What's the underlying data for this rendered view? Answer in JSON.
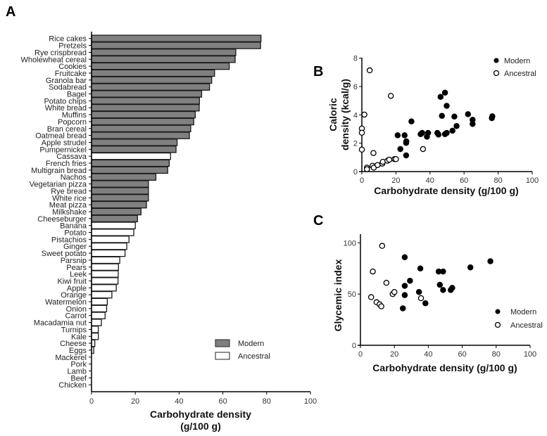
{
  "chart_data": [
    {
      "panel": "A",
      "type": "bar",
      "orientation": "horizontal",
      "xlabel_line1": "Carbohydrate density",
      "xlabel_line2": "(g/100 g)",
      "xlim": [
        0,
        100
      ],
      "xticks": [
        0,
        20,
        40,
        60,
        80,
        100
      ],
      "legend": {
        "placement": "bottom-right",
        "entries": [
          "Modern",
          "Ancestral"
        ]
      },
      "colors": {
        "Modern": "#808080",
        "Ancestral": "#ffffff"
      },
      "bars": [
        {
          "label": "Rice cakes",
          "value": 77.4,
          "group": "Modern"
        },
        {
          "label": "Pretzels",
          "value": 77.2,
          "group": "Modern"
        },
        {
          "label": "Rye crispbread",
          "value": 65.9,
          "group": "Modern"
        },
        {
          "label": "Wholewheat cereal",
          "value": 65.6,
          "group": "Modern"
        },
        {
          "label": "Cookies",
          "value": 62.9,
          "group": "Modern"
        },
        {
          "label": "Fruitcake",
          "value": 56.2,
          "group": "Modern"
        },
        {
          "label": "Granola bar",
          "value": 54.9,
          "group": "Modern"
        },
        {
          "label": "Sodabread",
          "value": 53.9,
          "group": "Modern"
        },
        {
          "label": "Bagel",
          "value": 50.3,
          "group": "Modern"
        },
        {
          "label": "Potato chips",
          "value": 49.3,
          "group": "Modern"
        },
        {
          "label": "White bread",
          "value": 49.2,
          "group": "Modern"
        },
        {
          "label": "Muffins",
          "value": 47.4,
          "group": "Modern"
        },
        {
          "label": "Popcorn",
          "value": 46.7,
          "group": "Modern"
        },
        {
          "label": "Bran cereal",
          "value": 45.3,
          "group": "Modern"
        },
        {
          "label": "Oatmeal bread",
          "value": 44.7,
          "group": "Modern"
        },
        {
          "label": "Apple strudel",
          "value": 39.1,
          "group": "Modern"
        },
        {
          "label": "Pumpernickel",
          "value": 38.6,
          "group": "Modern"
        },
        {
          "label": "Cassava",
          "value": 36.1,
          "group": "Ancestral"
        },
        {
          "label": "French fries",
          "value": 35.5,
          "group": "Modern"
        },
        {
          "label": "Multigrain bread",
          "value": 34.8,
          "group": "Modern"
        },
        {
          "label": "Nachos",
          "value": 29.4,
          "group": "Modern"
        },
        {
          "label": "Vegetarian pizza",
          "value": 26.0,
          "group": "Modern"
        },
        {
          "label": "Rye bread",
          "value": 26.0,
          "group": "Modern"
        },
        {
          "label": "White rice",
          "value": 26.0,
          "group": "Modern"
        },
        {
          "label": "Meat pizza",
          "value": 25.1,
          "group": "Modern"
        },
        {
          "label": "Milkshake",
          "value": 22.6,
          "group": "Modern"
        },
        {
          "label": "Cheeseburger",
          "value": 21.0,
          "group": "Modern"
        },
        {
          "label": "Banana",
          "value": 20.0,
          "group": "Ancestral"
        },
        {
          "label": "Potato",
          "value": 19.3,
          "group": "Ancestral"
        },
        {
          "label": "Pistachios",
          "value": 17.1,
          "group": "Ancestral"
        },
        {
          "label": "Ginger",
          "value": 16.1,
          "group": "Ancestral"
        },
        {
          "label": "Sweet potato",
          "value": 15.3,
          "group": "Ancestral"
        },
        {
          "label": "Parsnip",
          "value": 12.9,
          "group": "Ancestral"
        },
        {
          "label": "Pears",
          "value": 12.3,
          "group": "Ancestral"
        },
        {
          "label": "Leek",
          "value": 12.2,
          "group": "Ancestral"
        },
        {
          "label": "Kiwi fruit",
          "value": 12.1,
          "group": "Ancestral"
        },
        {
          "label": "Apple",
          "value": 11.3,
          "group": "Ancestral"
        },
        {
          "label": "Orange",
          "value": 9.3,
          "group": "Ancestral"
        },
        {
          "label": "Watermelon",
          "value": 7.2,
          "group": "Ancestral"
        },
        {
          "label": "Onion",
          "value": 6.9,
          "group": "Ancestral"
        },
        {
          "label": "Carrot",
          "value": 6.2,
          "group": "Ancestral"
        },
        {
          "label": "Macadamia nut",
          "value": 4.5,
          "group": "Ancestral"
        },
        {
          "label": "Turnips",
          "value": 3.1,
          "group": "Ancestral"
        },
        {
          "label": "Kale",
          "value": 3.1,
          "group": "Ancestral"
        },
        {
          "label": "Cheese",
          "value": 1.5,
          "group": "Ancestral"
        },
        {
          "label": "Eggs",
          "value": 1.0,
          "group": "Ancestral"
        },
        {
          "label": "Mackerel",
          "value": 0,
          "group": "Ancestral"
        },
        {
          "label": "Pork",
          "value": 0,
          "group": "Ancestral"
        },
        {
          "label": "Lamb",
          "value": 0,
          "group": "Ancestral"
        },
        {
          "label": "Beef",
          "value": 0,
          "group": "Ancestral"
        },
        {
          "label": "Chicken",
          "value": 0,
          "group": "Ancestral"
        }
      ]
    },
    {
      "panel": "B",
      "type": "scatter",
      "xlabel": "Carbohydrate density (g/100 g)",
      "ylabel_line1": "Caloric",
      "ylabel_line2": "density (kcal/g)",
      "xlim": [
        0,
        100
      ],
      "ylim": [
        0,
        8
      ],
      "xticks": [
        0,
        20,
        40,
        60,
        80,
        100
      ],
      "yticks": [
        0,
        2,
        4,
        6,
        8
      ],
      "legend": {
        "placement": "top-right",
        "entries": [
          "Modern",
          "Ancestral"
        ]
      },
      "series": [
        {
          "name": "Modern",
          "marker": "filled-circle",
          "points": [
            [
              29.1,
              3.54
            ],
            [
              21,
              2.56
            ],
            [
              25.1,
              2.56
            ],
            [
              22.6,
              1.59
            ],
            [
              26.1,
              2.13
            ],
            [
              26,
              2.02
            ],
            [
              26,
              1.14
            ],
            [
              34.5,
              2.64
            ],
            [
              35.4,
              2.73
            ],
            [
              38.2,
              2.46
            ],
            [
              38.9,
              2.73
            ],
            [
              44.3,
              2.73
            ],
            [
              45,
              2.61
            ],
            [
              46.2,
              5.27
            ],
            [
              47,
              3.93
            ],
            [
              48.8,
              5.57
            ],
            [
              48.8,
              2.64
            ],
            [
              49.8,
              4.64
            ],
            [
              49.8,
              2.73
            ],
            [
              53.2,
              2.88
            ],
            [
              54.3,
              3.88
            ],
            [
              55.6,
              3.21
            ],
            [
              62.3,
              4.05
            ],
            [
              65,
              3.36
            ],
            [
              65,
              3.65
            ],
            [
              76.3,
              3.77
            ],
            [
              76.6,
              3.9
            ]
          ]
        },
        {
          "name": "Ancestral",
          "marker": "open-circle",
          "points": [
            [
              4.6,
              7.14
            ],
            [
              17,
              5.34
            ],
            [
              1.5,
              4.02
            ],
            [
              0,
              3.04
            ],
            [
              0,
              2.74
            ],
            [
              0,
              1.55
            ],
            [
              6.8,
              1.31
            ],
            [
              35.9,
              1.59
            ],
            [
              3,
              0.28
            ],
            [
              3,
              0.17
            ],
            [
              6.3,
              0.41
            ],
            [
              7,
              0.28
            ],
            [
              9.2,
              0.46
            ],
            [
              12,
              0.56
            ],
            [
              12.3,
              0.69
            ],
            [
              15,
              0.76
            ],
            [
              16.1,
              0.84
            ],
            [
              19.2,
              0.88
            ],
            [
              20,
              0.88
            ]
          ]
        }
      ]
    },
    {
      "panel": "C",
      "type": "scatter",
      "xlabel": "Carbohydrate density (g/100 g)",
      "ylabel": "Glycemic index",
      "xlim": [
        0,
        100
      ],
      "ylim": [
        0,
        100
      ],
      "xticks": [
        0,
        20,
        40,
        60,
        80,
        100
      ],
      "yticks": [
        0,
        50,
        100
      ],
      "legend": {
        "placement": "bottom-right",
        "entries": [
          "Modern",
          "Ancestral"
        ]
      },
      "series": [
        {
          "name": "Modern",
          "marker": "filled-circle",
          "points": [
            [
              26.1,
              86
            ],
            [
              26.1,
              58
            ],
            [
              26.1,
              49
            ],
            [
              25,
              36
            ],
            [
              29.2,
              63
            ],
            [
              35.3,
              75
            ],
            [
              34.5,
              52
            ],
            [
              38.3,
              41
            ],
            [
              46.1,
              72
            ],
            [
              48.7,
              72
            ],
            [
              46.8,
              59
            ],
            [
              48.7,
              54
            ],
            [
              53.2,
              54
            ],
            [
              54.1,
              56
            ],
            [
              64.8,
              76
            ],
            [
              76.6,
              82
            ]
          ]
        },
        {
          "name": "Ancestral",
          "marker": "open-circle",
          "points": [
            [
              12.8,
              97
            ],
            [
              7.3,
              72
            ],
            [
              15.3,
              61
            ],
            [
              6.3,
              47
            ],
            [
              9.5,
              42
            ],
            [
              11.3,
              40
            ],
            [
              12.3,
              38
            ],
            [
              19,
              50
            ],
            [
              20,
              52
            ],
            [
              35.7,
              46
            ]
          ]
        }
      ]
    }
  ]
}
